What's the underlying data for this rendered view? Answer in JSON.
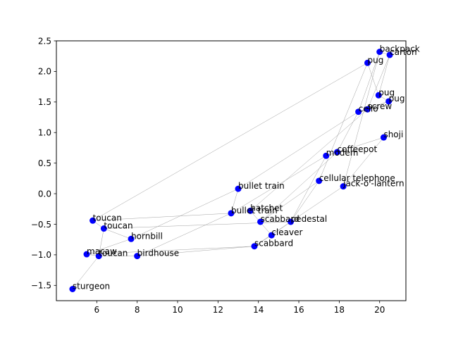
{
  "chart_data": {
    "type": "scatter",
    "title": "",
    "xlabel": "",
    "ylabel": "",
    "xlim": [
      4.0,
      21.3
    ],
    "ylim": [
      -1.75,
      2.5
    ],
    "grid": false,
    "xticks": [
      6,
      8,
      10,
      12,
      14,
      16,
      18,
      20
    ],
    "yticks": [
      -1.5,
      -1.0,
      -0.5,
      0.0,
      0.5,
      1.0,
      1.5,
      2.0,
      2.5
    ],
    "xtick_labels": [
      "6",
      "8",
      "10",
      "12",
      "14",
      "16",
      "18",
      "20"
    ],
    "ytick_labels": [
      "−1.5",
      "−1.0",
      "−0.5",
      "0.0",
      "0.5",
      "1.0",
      "1.5",
      "2.0",
      "2.5"
    ],
    "marker_color": "#0000ff",
    "edge_color": "#a0a0a0",
    "points": [
      {
        "label": "backpack",
        "x": 20.0,
        "y": 2.32
      },
      {
        "label": "carton",
        "x": 20.5,
        "y": 2.27
      },
      {
        "label": "pug",
        "x": 19.4,
        "y": 2.14
      },
      {
        "label": "pug",
        "x": 19.95,
        "y": 1.61
      },
      {
        "label": "pug",
        "x": 20.45,
        "y": 1.51
      },
      {
        "label": "screw",
        "x": 19.4,
        "y": 1.38
      },
      {
        "label": "cello",
        "x": 18.95,
        "y": 1.34
      },
      {
        "label": "shoji",
        "x": 20.2,
        "y": 0.92
      },
      {
        "label": "coffeepot",
        "x": 17.9,
        "y": 0.68
      },
      {
        "label": "modem",
        "x": 17.35,
        "y": 0.62
      },
      {
        "label": "cellular telephone",
        "x": 17.0,
        "y": 0.21
      },
      {
        "label": "jack-o'-lantern",
        "x": 18.2,
        "y": 0.12
      },
      {
        "label": "bullet train",
        "x": 13.0,
        "y": 0.08
      },
      {
        "label": "hatchet",
        "x": 13.6,
        "y": -0.28
      },
      {
        "label": "bullet train",
        "x": 12.65,
        "y": -0.32
      },
      {
        "label": "scabbard",
        "x": 14.1,
        "y": -0.46
      },
      {
        "label": "pedestal",
        "x": 15.6,
        "y": -0.46
      },
      {
        "label": "cleaver",
        "x": 14.65,
        "y": -0.68
      },
      {
        "label": "scabbard",
        "x": 13.8,
        "y": -0.86
      },
      {
        "label": "toucan",
        "x": 5.8,
        "y": -0.44
      },
      {
        "label": "toucan",
        "x": 6.35,
        "y": -0.57
      },
      {
        "label": "hornbill",
        "x": 7.7,
        "y": -0.74
      },
      {
        "label": "macaw",
        "x": 5.5,
        "y": -0.99
      },
      {
        "label": "toucan",
        "x": 6.1,
        "y": -1.02
      },
      {
        "label": "birdhouse",
        "x": 8.0,
        "y": -1.02
      },
      {
        "label": "sturgeon",
        "x": 4.8,
        "y": -1.56
      }
    ],
    "edges": [
      [
        0,
        1
      ],
      [
        0,
        6
      ],
      [
        0,
        11
      ],
      [
        1,
        3
      ],
      [
        1,
        5
      ],
      [
        2,
        3
      ],
      [
        2,
        10
      ],
      [
        2,
        19
      ],
      [
        3,
        4
      ],
      [
        4,
        5
      ],
      [
        4,
        6
      ],
      [
        5,
        6
      ],
      [
        5,
        13
      ],
      [
        6,
        8
      ],
      [
        6,
        12
      ],
      [
        7,
        9
      ],
      [
        7,
        11
      ],
      [
        8,
        9
      ],
      [
        8,
        15
      ],
      [
        9,
        14
      ],
      [
        9,
        16
      ],
      [
        10,
        15
      ],
      [
        10,
        16
      ],
      [
        11,
        18
      ],
      [
        12,
        14
      ],
      [
        12,
        21
      ],
      [
        13,
        17
      ],
      [
        14,
        19
      ],
      [
        15,
        16
      ],
      [
        16,
        17
      ],
      [
        17,
        18
      ],
      [
        18,
        24
      ],
      [
        18,
        22
      ],
      [
        19,
        20
      ],
      [
        20,
        21
      ],
      [
        21,
        22
      ],
      [
        22,
        23
      ],
      [
        23,
        24
      ],
      [
        23,
        25
      ],
      [
        14,
        24
      ],
      [
        16,
        20
      ],
      [
        20,
        23
      ]
    ]
  }
}
